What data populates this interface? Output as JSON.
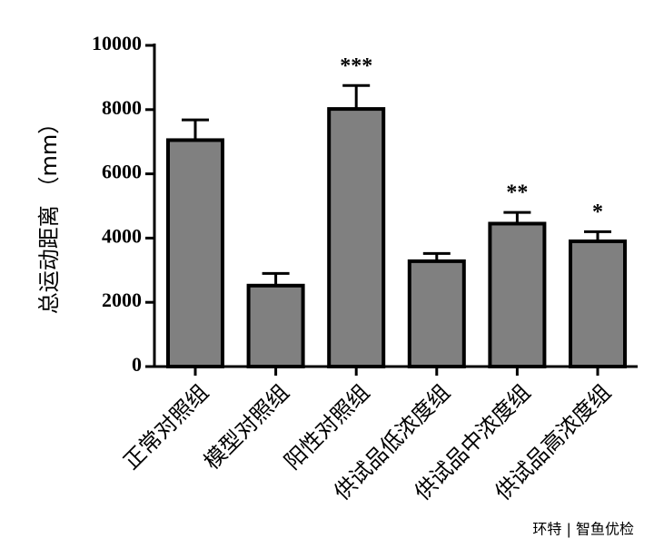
{
  "chart_data": {
    "type": "bar",
    "ylabel": "总运动距离 （mm）",
    "categories": [
      "正常对照组",
      "模型对照组",
      "阳性对照组",
      "供试品低浓度组",
      "供试品中浓度组",
      "供试品高浓度组"
    ],
    "values": [
      7050,
      2520,
      8020,
      3280,
      4450,
      3900
    ],
    "errors": [
      630,
      380,
      730,
      240,
      350,
      300
    ],
    "annotations": [
      null,
      null,
      "***",
      null,
      "**",
      "*"
    ],
    "color": "#808080",
    "ylim": [
      0,
      10000
    ],
    "yticks": [
      0,
      2000,
      4000,
      6000,
      8000,
      10000
    ]
  },
  "watermark": "环特 | 智鱼优检"
}
